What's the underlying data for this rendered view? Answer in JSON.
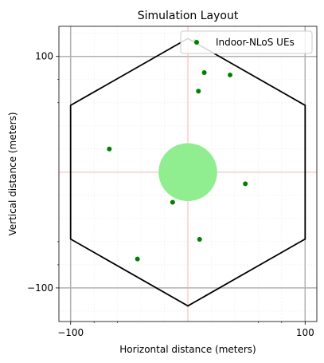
{
  "chart_data": {
    "type": "scatter",
    "title": "Simulation Layout",
    "xlabel": "Horizontal distance (meters)",
    "ylabel": "Vertical distance (meters)",
    "xlim": [
      -110,
      110
    ],
    "ylim": [
      -129,
      126
    ],
    "xticks": [
      {
        "value": -100,
        "label": "−100"
      },
      {
        "value": 100,
        "label": "100"
      }
    ],
    "yticks": [
      {
        "value": 100,
        "label": "100"
      },
      {
        "value": -100,
        "label": "−100"
      }
    ],
    "grid": "major and minor",
    "legend": {
      "position": "top-right",
      "entries": [
        "Indoor-NLoS UEs"
      ]
    },
    "hexagon": {
      "center": [
        0,
        0
      ],
      "circumradius": 115.5,
      "orientation": "pointy-top",
      "color": "#000000"
    },
    "base_station_region": {
      "center": [
        0,
        0
      ],
      "radius": 25,
      "color": "#90ee90"
    },
    "crosshair": {
      "x": 0,
      "y": 0,
      "color": "#ffb0b0"
    },
    "series": [
      {
        "name": "Indoor-NLoS UEs",
        "color": "#008000",
        "points": [
          {
            "x": 6,
            "y": 113
          },
          {
            "x": 14,
            "y": 86
          },
          {
            "x": 36,
            "y": 84
          },
          {
            "x": 9,
            "y": 70
          },
          {
            "x": -67,
            "y": 20
          },
          {
            "x": 49,
            "y": -10
          },
          {
            "x": -13,
            "y": -26
          },
          {
            "x": 10,
            "y": -58
          },
          {
            "x": -43,
            "y": -75
          }
        ]
      }
    ]
  }
}
